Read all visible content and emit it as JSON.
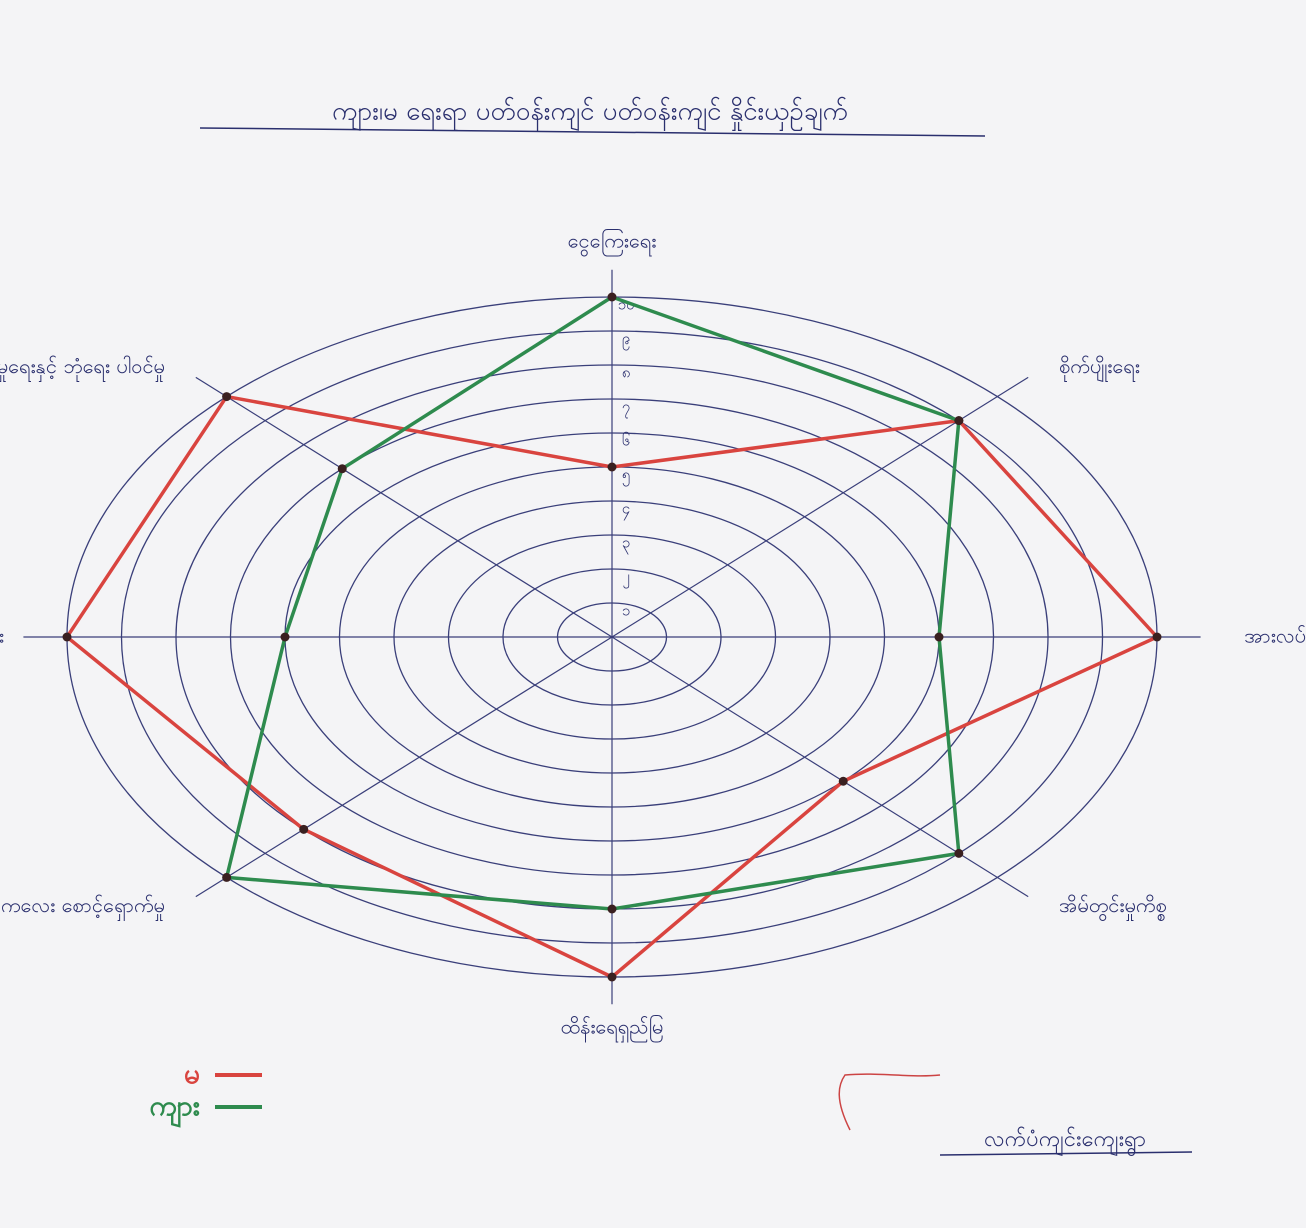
{
  "chart_data": {
    "type": "radar",
    "title": "ကျား၊မ ရေးရာ ပတ်ဝန်းကျင် ပတ်ဝန်းကျင် နှိုင်းယှဉ်ချက်",
    "categories": [
      "ငွေကြေးရေး",
      "စိုက်ပျိုးရေး",
      "အားလပ်၊ဖျော်ဖြေရေး",
      "အိမ်တွင်းမှုကိစ္စ",
      "ထိန်းရေရှည်မြ",
      "ကလေး စောင့်ရှောက်မှု",
      "ပညာရေး",
      "လူမှုရေးနှင့် ဘုံရေး ပါဝင်မှု"
    ],
    "series": [
      {
        "name": "မ",
        "color": "#d9443f",
        "values": [
          5,
          9,
          10,
          6,
          10,
          8,
          10,
          10
        ]
      },
      {
        "name": "ကျား",
        "color": "#2e8b4e",
        "values": [
          10,
          9,
          6,
          9,
          8,
          10,
          6,
          7
        ]
      }
    ],
    "rlim": [
      0,
      10
    ],
    "rticks": [
      {
        "value": 1,
        "label": "၁"
      },
      {
        "value": 2,
        "label": "၂"
      },
      {
        "value": 3,
        "label": "၃"
      },
      {
        "value": 4,
        "label": "၄"
      },
      {
        "value": 5,
        "label": "၅"
      },
      {
        "value": 6,
        "label": "၆"
      },
      {
        "value": 7,
        "label": "၇"
      },
      {
        "value": 8,
        "label": "၈"
      },
      {
        "value": 9,
        "label": "၉"
      },
      {
        "value": 10,
        "label": "၁၀"
      }
    ],
    "footer": "လက်ပံကျင်းကျေးရွာ"
  }
}
